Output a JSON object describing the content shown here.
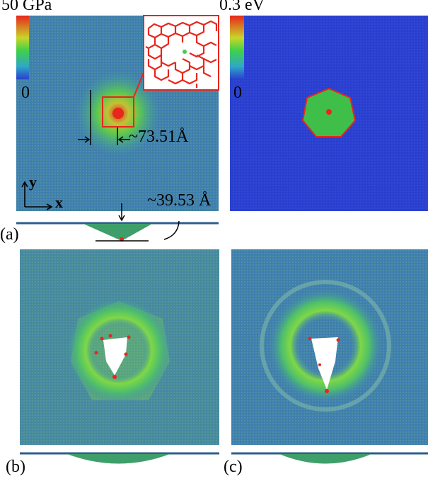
{
  "panel_a": {
    "colorbar_max": "50 GPa",
    "colorbar_min": "0",
    "dimension_width": "~73.51Å",
    "dimension_depth": "~39.53 Å",
    "axis_y": "y",
    "axis_x": "x",
    "label": "(a)"
  },
  "panel_energy": {
    "colorbar_max": "0.3 eV",
    "colorbar_min": "0"
  },
  "panel_b": {
    "label": "(b)"
  },
  "panel_c": {
    "label": "(c)"
  },
  "colors": {
    "sheet_blue": "#3f7fae",
    "energy_blue": "#2a3fcf",
    "red": "#e8261c",
    "green": "#3fd04a"
  }
}
